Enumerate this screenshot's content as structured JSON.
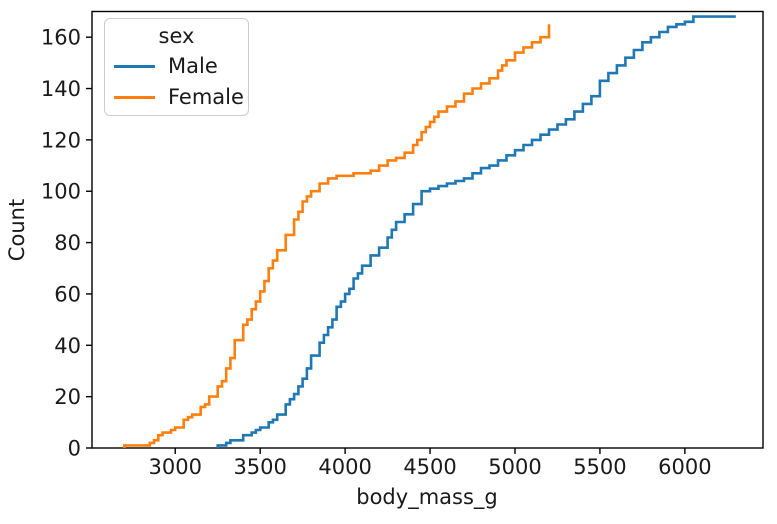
{
  "chart_data": {
    "type": "line",
    "subtype": "cumulative-step-ecdf",
    "title": "",
    "xlabel": "body_mass_g",
    "ylabel": "Count",
    "xlim": [
      2510,
      6460
    ],
    "ylim": [
      0,
      170
    ],
    "xticks": [
      3000,
      3500,
      4000,
      4500,
      5000,
      5500,
      6000
    ],
    "yticks": [
      0,
      20,
      40,
      60,
      80,
      100,
      120,
      140,
      160
    ],
    "grid": false,
    "legend": {
      "title": "sex",
      "position": "upper-left",
      "entries": [
        "Male",
        "Female"
      ]
    },
    "colors": {
      "male": "#1f77b4",
      "female": "#ff7f0e",
      "spine": "#000000",
      "text": "#1a1a1a",
      "legend_border": "#cccccc"
    },
    "series": [
      {
        "name": "Male",
        "color": "#1f77b4",
        "n_total": 168,
        "points": [
          [
            3250,
            1
          ],
          [
            3300,
            2
          ],
          [
            3325,
            3
          ],
          [
            3400,
            5
          ],
          [
            3450,
            6
          ],
          [
            3475,
            7
          ],
          [
            3500,
            8
          ],
          [
            3550,
            10
          ],
          [
            3575,
            11
          ],
          [
            3600,
            13
          ],
          [
            3650,
            17
          ],
          [
            3675,
            19
          ],
          [
            3700,
            21
          ],
          [
            3725,
            24
          ],
          [
            3750,
            27
          ],
          [
            3775,
            31
          ],
          [
            3800,
            36
          ],
          [
            3850,
            41
          ],
          [
            3875,
            44
          ],
          [
            3900,
            47
          ],
          [
            3925,
            50
          ],
          [
            3950,
            55
          ],
          [
            3975,
            57
          ],
          [
            4000,
            60
          ],
          [
            4025,
            62
          ],
          [
            4050,
            66
          ],
          [
            4075,
            68
          ],
          [
            4100,
            71
          ],
          [
            4150,
            75
          ],
          [
            4200,
            78
          ],
          [
            4250,
            82
          ],
          [
            4275,
            85
          ],
          [
            4300,
            88
          ],
          [
            4350,
            91
          ],
          [
            4400,
            95
          ],
          [
            4450,
            100
          ],
          [
            4500,
            101
          ],
          [
            4550,
            102
          ],
          [
            4600,
            103
          ],
          [
            4650,
            104
          ],
          [
            4700,
            105
          ],
          [
            4750,
            107
          ],
          [
            4800,
            109
          ],
          [
            4850,
            110
          ],
          [
            4900,
            112
          ],
          [
            4950,
            114
          ],
          [
            5000,
            116
          ],
          [
            5050,
            118
          ],
          [
            5100,
            120
          ],
          [
            5150,
            122
          ],
          [
            5200,
            124
          ],
          [
            5250,
            126
          ],
          [
            5300,
            128
          ],
          [
            5350,
            131
          ],
          [
            5400,
            134
          ],
          [
            5450,
            137
          ],
          [
            5500,
            143
          ],
          [
            5550,
            146
          ],
          [
            5600,
            149
          ],
          [
            5650,
            152
          ],
          [
            5700,
            155
          ],
          [
            5750,
            158
          ],
          [
            5800,
            160
          ],
          [
            5850,
            162
          ],
          [
            5900,
            164
          ],
          [
            5950,
            165
          ],
          [
            6000,
            166
          ],
          [
            6050,
            168
          ],
          [
            6300,
            168
          ]
        ]
      },
      {
        "name": "Female",
        "color": "#ff7f0e",
        "n_total": 165,
        "points": [
          [
            2700,
            1
          ],
          [
            2850,
            2
          ],
          [
            2875,
            3
          ],
          [
            2900,
            5
          ],
          [
            2925,
            6
          ],
          [
            2975,
            7
          ],
          [
            3000,
            8
          ],
          [
            3050,
            11
          ],
          [
            3075,
            12
          ],
          [
            3100,
            13
          ],
          [
            3150,
            16
          ],
          [
            3175,
            17
          ],
          [
            3200,
            20
          ],
          [
            3250,
            24
          ],
          [
            3275,
            26
          ],
          [
            3300,
            31
          ],
          [
            3325,
            35
          ],
          [
            3350,
            42
          ],
          [
            3400,
            48
          ],
          [
            3425,
            50
          ],
          [
            3450,
            54
          ],
          [
            3475,
            57
          ],
          [
            3500,
            61
          ],
          [
            3525,
            65
          ],
          [
            3550,
            70
          ],
          [
            3575,
            73
          ],
          [
            3600,
            77
          ],
          [
            3650,
            83
          ],
          [
            3700,
            89
          ],
          [
            3725,
            92
          ],
          [
            3750,
            96
          ],
          [
            3775,
            98
          ],
          [
            3800,
            100
          ],
          [
            3850,
            103
          ],
          [
            3900,
            105
          ],
          [
            3950,
            106
          ],
          [
            4050,
            107
          ],
          [
            4150,
            108
          ],
          [
            4200,
            110
          ],
          [
            4250,
            112
          ],
          [
            4300,
            113
          ],
          [
            4350,
            115
          ],
          [
            4400,
            118
          ],
          [
            4425,
            120
          ],
          [
            4450,
            123
          ],
          [
            4475,
            125
          ],
          [
            4500,
            127
          ],
          [
            4525,
            129
          ],
          [
            4550,
            131
          ],
          [
            4600,
            133
          ],
          [
            4650,
            135
          ],
          [
            4700,
            138
          ],
          [
            4750,
            140
          ],
          [
            4800,
            142
          ],
          [
            4850,
            144
          ],
          [
            4900,
            147
          ],
          [
            4925,
            149
          ],
          [
            4950,
            151
          ],
          [
            5000,
            154
          ],
          [
            5050,
            156
          ],
          [
            5100,
            158
          ],
          [
            5150,
            160
          ],
          [
            5200,
            165
          ]
        ]
      }
    ]
  }
}
